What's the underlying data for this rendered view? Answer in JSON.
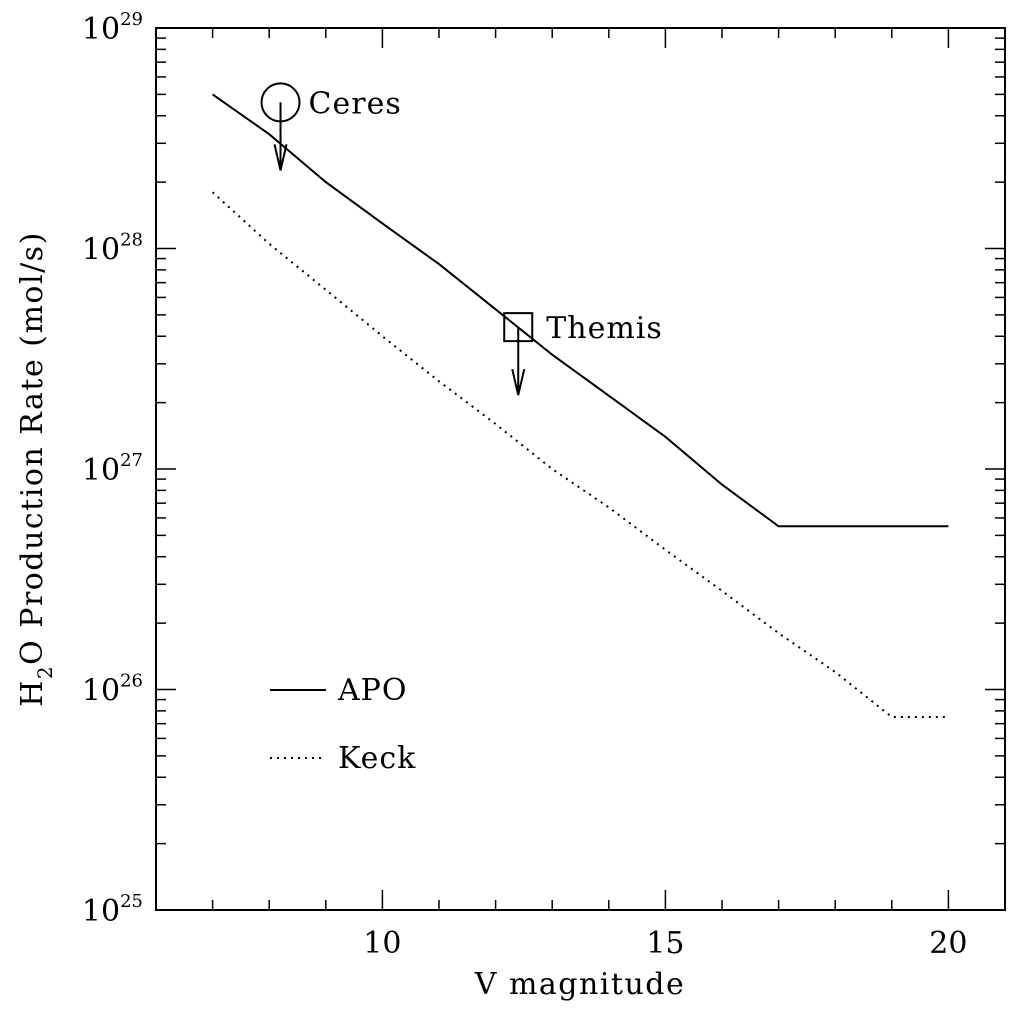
{
  "chart_data": {
    "type": "line",
    "xlabel": "V magnitude",
    "ylabel": {
      "prefix": "H",
      "subscript": "2",
      "rest": "O Production Rate (mol/s)"
    },
    "xlim": [
      6,
      21
    ],
    "ylim": [
      1e+25,
      1e+29
    ],
    "yscale": "log",
    "x_ticks": [
      10,
      15,
      20
    ],
    "y_ticks": [
      {
        "value": 1e+25,
        "base": "10",
        "exp": "25"
      },
      {
        "value": 1e+26,
        "base": "10",
        "exp": "26"
      },
      {
        "value": 1e+27,
        "base": "10",
        "exp": "27"
      },
      {
        "value": 1e+28,
        "base": "10",
        "exp": "28"
      },
      {
        "value": 1e+29,
        "base": "10",
        "exp": "29"
      }
    ],
    "grid": false,
    "legend": {
      "placement": "bottom-left"
    },
    "series": [
      {
        "name": "APO",
        "style": "solid",
        "points": [
          [
            7,
            5e+28
          ],
          [
            8,
            3.3e+28
          ],
          [
            9,
            2e+28
          ],
          [
            10,
            1.3e+28
          ],
          [
            11,
            8.5e+27
          ],
          [
            12,
            5.3e+27
          ],
          [
            13,
            3.3e+27
          ],
          [
            14,
            2.15e+27
          ],
          [
            15,
            1.4e+27
          ],
          [
            16,
            8.5e+26
          ],
          [
            17,
            5.5e+26
          ],
          [
            20,
            5.5e+26
          ]
        ]
      },
      {
        "name": "Keck",
        "style": "dotted",
        "points": [
          [
            7,
            1.8e+28
          ],
          [
            8,
            1.05e+28
          ],
          [
            9,
            6.5e+27
          ],
          [
            10,
            4e+27
          ],
          [
            11,
            2.5e+27
          ],
          [
            12,
            1.6e+27
          ],
          [
            13,
            1e+27
          ],
          [
            14,
            6.7e+26
          ],
          [
            15,
            4.3e+26
          ],
          [
            16,
            2.8e+26
          ],
          [
            17,
            1.8e+26
          ],
          [
            18,
            1.2e+26
          ],
          [
            19,
            7.5e+25
          ],
          [
            20,
            7.5e+25
          ]
        ]
      }
    ],
    "annotations": [
      {
        "label": "Ceres",
        "x": 8.2,
        "y": 4.6e+28,
        "marker": "circle",
        "upper_limit": true
      },
      {
        "label": "Themis",
        "x": 12.4,
        "y": 4.4e+27,
        "marker": "square",
        "upper_limit": true
      }
    ]
  }
}
